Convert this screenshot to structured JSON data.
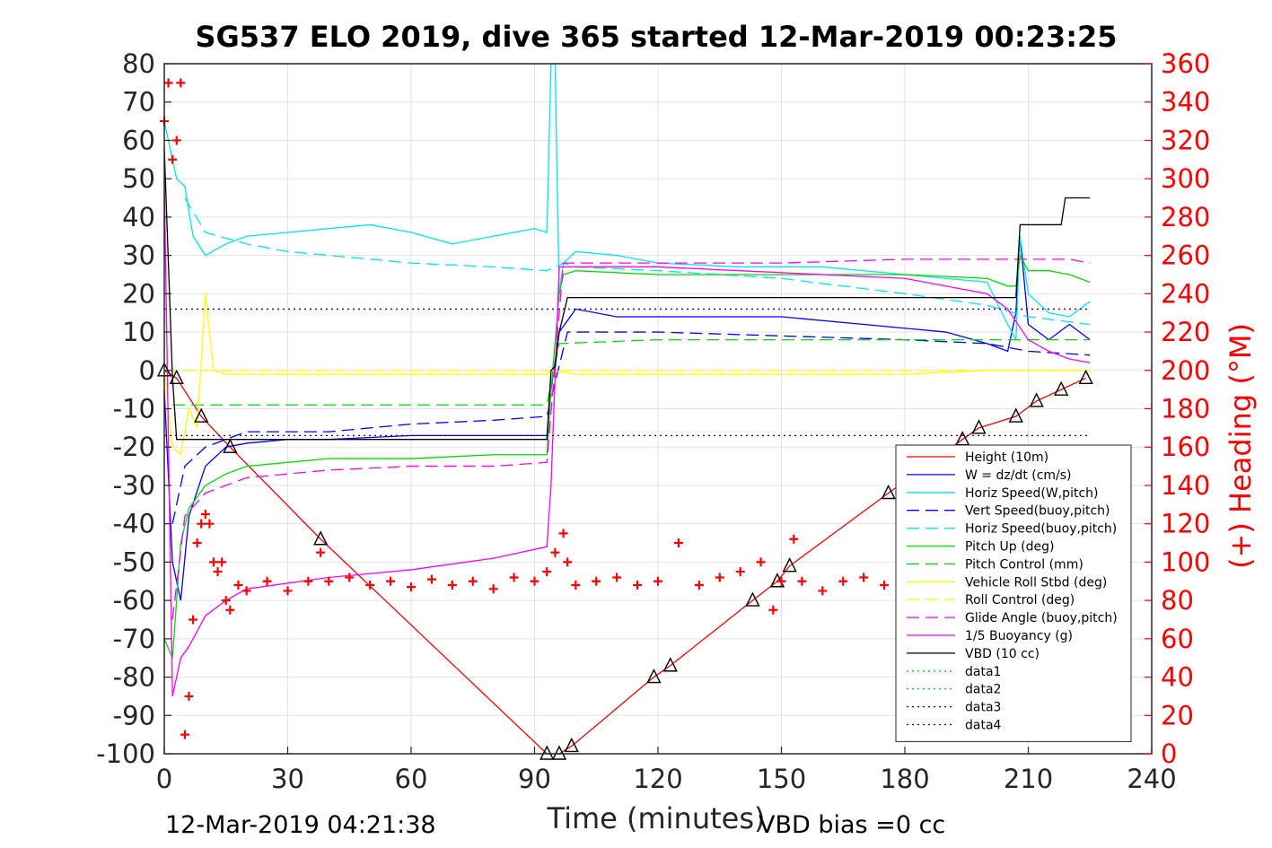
{
  "chart_data": {
    "type": "line",
    "title": "SG537 ELO 2019, dive 365 started 12-Mar-2019 00:23:25",
    "xlabel": "Time (minutes)",
    "ylabel": "",
    "y2label": "(+) Heading (°M)",
    "xlim": [
      0,
      240
    ],
    "ylim": [
      -100,
      80
    ],
    "y2lim": [
      0,
      360
    ],
    "xticks": [
      "0",
      "30",
      "60",
      "90",
      "120",
      "150",
      "180",
      "210",
      "240"
    ],
    "yticks": [
      "80",
      "70",
      "60",
      "50",
      "40",
      "30",
      "20",
      "10",
      "0",
      "-10",
      "-20",
      "-30",
      "-40",
      "-50",
      "-60",
      "-70",
      "-80",
      "-90",
      "-100"
    ],
    "y2ticks": [
      "360",
      "340",
      "320",
      "300",
      "280",
      "260",
      "240",
      "220",
      "200",
      "180",
      "160",
      "140",
      "120",
      "100",
      "80",
      "60",
      "40",
      "20",
      "0"
    ],
    "grid": true,
    "legend_position": "lower-right",
    "footer_left": "12-Mar-2019 04:21:38",
    "footer_right": "VBD bias =0 cc",
    "series": [
      {
        "name": "Height (10m)",
        "color": "#ff0000",
        "style": "solid",
        "x": [
          0,
          3,
          9,
          16,
          38,
          93,
          96,
          99,
          119,
          123,
          143,
          149,
          152,
          176,
          194,
          198,
          207,
          212,
          218,
          224
        ],
        "y": [
          0,
          -2,
          -12,
          -20,
          -44,
          -100,
          -100,
          -98,
          -80,
          -77,
          -60,
          -55,
          -51,
          -32,
          -18,
          -15,
          -12,
          -8,
          -5,
          -2
        ]
      },
      {
        "name": "W = dz/dt (cm/s)",
        "color": "#0000ff",
        "style": "solid",
        "x": [
          0,
          2,
          4,
          6,
          10,
          15,
          20,
          30,
          40,
          60,
          80,
          93,
          94,
          96,
          100,
          110,
          130,
          150,
          170,
          190,
          200,
          205,
          207,
          208,
          210,
          215,
          220,
          225
        ],
        "y": [
          -5,
          -50,
          -60,
          -38,
          -25,
          -20,
          -19,
          -18,
          -18,
          -17,
          -17,
          -17,
          -5,
          10,
          16,
          14,
          14,
          14,
          12,
          10,
          7,
          5,
          15,
          35,
          12,
          8,
          12,
          8
        ]
      },
      {
        "name": "Horiz Speed(W,pitch)",
        "color": "#00e5ee",
        "style": "solid",
        "x": [
          0,
          3,
          5,
          7,
          10,
          15,
          20,
          30,
          40,
          50,
          60,
          70,
          80,
          90,
          93,
          94,
          95,
          96,
          97,
          100,
          110,
          120,
          140,
          160,
          180,
          190,
          200,
          205,
          207,
          208,
          210,
          215,
          220,
          225
        ],
        "y": [
          65,
          50,
          48,
          35,
          30,
          33,
          35,
          36,
          37,
          38,
          36,
          33,
          35,
          37,
          36,
          80,
          80,
          20,
          28,
          31,
          30,
          28,
          27,
          27,
          25,
          24,
          23,
          12,
          8,
          35,
          20,
          15,
          14,
          18
        ]
      },
      {
        "name": "Vert Speed(buoy,pitch)",
        "color": "#0000ff",
        "style": "dashed",
        "x": [
          2,
          5,
          10,
          20,
          40,
          60,
          80,
          93,
          98,
          100,
          120,
          150,
          180,
          200,
          210,
          225
        ],
        "y": [
          -40,
          -25,
          -20,
          -16,
          -16,
          -14,
          -13,
          -12,
          10,
          10,
          10,
          9,
          8,
          7,
          5,
          4
        ]
      },
      {
        "name": "Horiz Speed(buoy,pitch)",
        "color": "#00e5ee",
        "style": "dashed",
        "x": [
          5,
          10,
          20,
          30,
          40,
          60,
          80,
          93,
          97,
          100,
          120,
          150,
          180,
          200,
          210,
          225
        ],
        "y": [
          45,
          36,
          33,
          31,
          30,
          28,
          27,
          26,
          28,
          27,
          26,
          24,
          20,
          17,
          14,
          12
        ]
      },
      {
        "name": "Pitch Up (deg)",
        "color": "#00dd00",
        "style": "solid",
        "x": [
          0,
          2,
          4,
          6,
          10,
          15,
          20,
          30,
          40,
          60,
          80,
          93,
          94,
          96,
          97,
          100,
          120,
          150,
          180,
          200,
          205,
          207,
          208,
          210,
          215,
          220,
          225
        ],
        "y": [
          -70,
          -75,
          -45,
          -36,
          -30,
          -27,
          -25,
          -24,
          -23,
          -23,
          -22,
          -22,
          -5,
          20,
          25,
          26,
          25,
          25,
          25,
          24,
          22,
          22,
          30,
          26,
          26,
          25,
          23
        ]
      },
      {
        "name": "Pitch Control (mm)",
        "color": "#00dd00",
        "style": "dashed",
        "x": [
          2,
          10,
          93,
          96,
          120,
          180,
          207,
          225
        ],
        "y": [
          -9,
          -9,
          -9,
          7,
          8,
          8,
          8,
          8
        ]
      },
      {
        "name": "Vehicle Roll Stbd (deg)",
        "color": "#ffff00",
        "style": "solid",
        "x": [
          0,
          2,
          4,
          6,
          8,
          10,
          12,
          15,
          20,
          40,
          60,
          80,
          93,
          94,
          100,
          120,
          150,
          180,
          200,
          210,
          220,
          225
        ],
        "y": [
          0,
          -20,
          -22,
          -10,
          -15,
          20,
          0,
          -1,
          -1,
          -1,
          -1,
          -1,
          -1,
          0,
          -1,
          -1,
          -1,
          -1,
          0,
          0,
          0,
          0
        ]
      },
      {
        "name": "Roll Control (deg)",
        "color": "#ffff00",
        "style": "dashed",
        "x": [
          0,
          93,
          94,
          225
        ],
        "y": [
          0,
          0,
          0,
          0
        ]
      },
      {
        "name": "Glide Angle (buoy,pitch)",
        "color": "#ff00ff",
        "style": "dashed",
        "x": [
          2,
          5,
          10,
          20,
          40,
          60,
          80,
          93,
          97,
          100,
          120,
          150,
          180,
          200,
          207,
          208,
          210,
          220,
          225
        ],
        "y": [
          -65,
          -38,
          -32,
          -28,
          -26,
          -25,
          -25,
          -24,
          28,
          28,
          28,
          28,
          29,
          29,
          29,
          29,
          29,
          29,
          28
        ]
      },
      {
        "name": "1/5 Buoyancy (g)",
        "color": "#ff00ff",
        "style": "solid",
        "x": [
          0,
          2,
          4,
          6,
          10,
          15,
          20,
          40,
          60,
          80,
          93,
          94,
          96,
          100,
          120,
          140,
          160,
          180,
          200,
          205,
          210,
          215,
          220,
          225
        ],
        "y": [
          50,
          -85,
          -75,
          -72,
          -64,
          -60,
          -57,
          -54,
          -52,
          -49,
          -46,
          -30,
          27,
          27,
          27,
          26,
          25,
          24,
          20,
          16,
          8,
          5,
          3,
          2
        ]
      },
      {
        "name": "VBD (10 cc)",
        "color": "#000000",
        "style": "solid",
        "x": [
          0,
          2,
          3,
          93,
          94,
          95,
          96,
          98,
          99,
          207,
          208,
          218,
          219,
          225
        ],
        "y": [
          58,
          -2,
          -18,
          -18,
          0,
          1,
          10,
          19,
          19,
          19,
          38,
          38,
          45,
          45
        ]
      },
      {
        "name": "data1",
        "color": "#00dd00",
        "style": "dotted",
        "x": [],
        "y": []
      },
      {
        "name": "data2",
        "color": "#00dd00",
        "style": "dotted",
        "x": [],
        "y": []
      },
      {
        "name": "data3",
        "color": "#0000aa",
        "style": "dotted",
        "x": [
          0,
          225
        ],
        "y": [
          16,
          16
        ]
      },
      {
        "name": "data4",
        "color": "#0000aa",
        "style": "dotted",
        "x": [
          0,
          225
        ],
        "y": [
          -17,
          -17
        ]
      }
    ],
    "heading": {
      "name": "(+) Heading (°M)",
      "color": "#ff0000",
      "marker": "+",
      "x": [
        0,
        1,
        2,
        3,
        4,
        5,
        6,
        7,
        8,
        9,
        10,
        11,
        12,
        13,
        14,
        15,
        16,
        18,
        20,
        25,
        30,
        35,
        38,
        40,
        45,
        50,
        55,
        60,
        65,
        70,
        75,
        80,
        85,
        90,
        93,
        95,
        97,
        98,
        100,
        105,
        110,
        115,
        120,
        125,
        130,
        135,
        140,
        145,
        148,
        150,
        153,
        155,
        160,
        165,
        170,
        175,
        180
      ],
      "y": [
        330,
        350,
        310,
        320,
        350,
        10,
        30,
        70,
        110,
        120,
        125,
        120,
        100,
        95,
        100,
        80,
        75,
        88,
        85,
        90,
        85,
        90,
        105,
        90,
        92,
        88,
        90,
        87,
        91,
        88,
        90,
        86,
        92,
        90,
        95,
        105,
        115,
        100,
        88,
        90,
        92,
        88,
        90,
        110,
        88,
        92,
        95,
        100,
        75,
        90,
        112,
        90,
        85,
        90,
        92,
        88,
        95
      ]
    }
  }
}
